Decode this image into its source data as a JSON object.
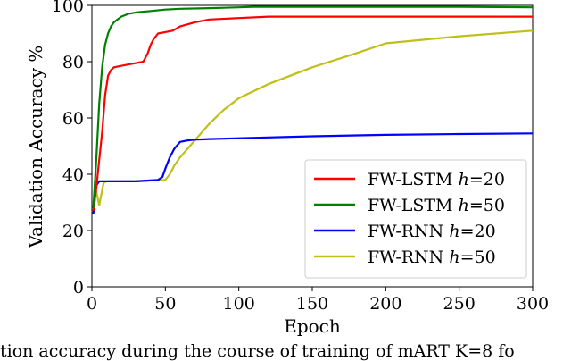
{
  "chart_data": {
    "type": "line",
    "xlabel": "Epoch",
    "ylabel": "Validation Accuracy %",
    "xlim": [
      0,
      300
    ],
    "ylim": [
      0,
      100
    ],
    "xticks": [
      "0",
      "50",
      "100",
      "150",
      "200",
      "250",
      "300"
    ],
    "yticks": [
      "0",
      "20",
      "40",
      "60",
      "80",
      "100"
    ],
    "grid": false,
    "legend_position": "center-right",
    "series": [
      {
        "name": "FW-LSTM h=20",
        "label_main": "FW-LSTM ",
        "label_var": "h",
        "label_val": "=20",
        "color": "#ff0000",
        "x": [
          1,
          3,
          5,
          7,
          9,
          11,
          13,
          15,
          20,
          25,
          30,
          35,
          38,
          40,
          42,
          45,
          50,
          55,
          60,
          70,
          80,
          100,
          120,
          150,
          200,
          250,
          300
        ],
        "y": [
          27,
          35,
          45,
          55,
          68,
          75,
          77,
          78,
          78.5,
          79,
          79.5,
          80,
          83,
          86,
          88,
          90,
          90.5,
          91,
          92.5,
          94,
          95,
          95.5,
          96,
          96,
          96,
          96,
          96
        ]
      },
      {
        "name": "FW-LSTM h=50",
        "label_main": "FW-LSTM ",
        "label_var": "h",
        "label_val": "=50",
        "color": "#008000",
        "x": [
          1,
          3,
          5,
          7,
          9,
          11,
          13,
          15,
          20,
          25,
          30,
          40,
          50,
          60,
          80,
          100,
          110,
          150,
          200,
          250,
          300
        ],
        "y": [
          28,
          45,
          65,
          78,
          86,
          90,
          92.5,
          94,
          96,
          97,
          97.5,
          98,
          98.5,
          98.8,
          99,
          99.3,
          99.5,
          99.5,
          99.5,
          99.5,
          99.3
        ]
      },
      {
        "name": "FW-RNN h=20",
        "label_main": "FW-RNN ",
        "label_var": "h",
        "label_val": "=20",
        "color": "#0000ff",
        "x": [
          1,
          3,
          5,
          10,
          20,
          30,
          40,
          45,
          48,
          50,
          53,
          56,
          60,
          65,
          70,
          80,
          100,
          150,
          200,
          250,
          300
        ],
        "y": [
          26,
          36,
          37.5,
          37.5,
          37.5,
          37.5,
          37.8,
          38,
          39,
          42,
          46,
          49,
          51.5,
          52,
          52.3,
          52.5,
          52.8,
          53.5,
          54,
          54.3,
          54.5
        ]
      },
      {
        "name": "FW-RNN h=50",
        "label_main": "FW-RNN ",
        "label_var": "h",
        "label_val": "=50",
        "color": "#bfbf1a",
        "x": [
          1,
          3,
          5,
          8,
          10,
          20,
          30,
          40,
          50,
          53,
          56,
          60,
          70,
          80,
          90,
          100,
          120,
          150,
          180,
          200,
          250,
          300
        ],
        "y": [
          30,
          34,
          29,
          37,
          37.5,
          37.5,
          37.6,
          37.8,
          38,
          40,
          43,
          46,
          52,
          58,
          63,
          67,
          72,
          78,
          83,
          86.5,
          89,
          91
        ]
      }
    ]
  },
  "caption": "tion accuracy during the course of training of mART K=8 fo"
}
